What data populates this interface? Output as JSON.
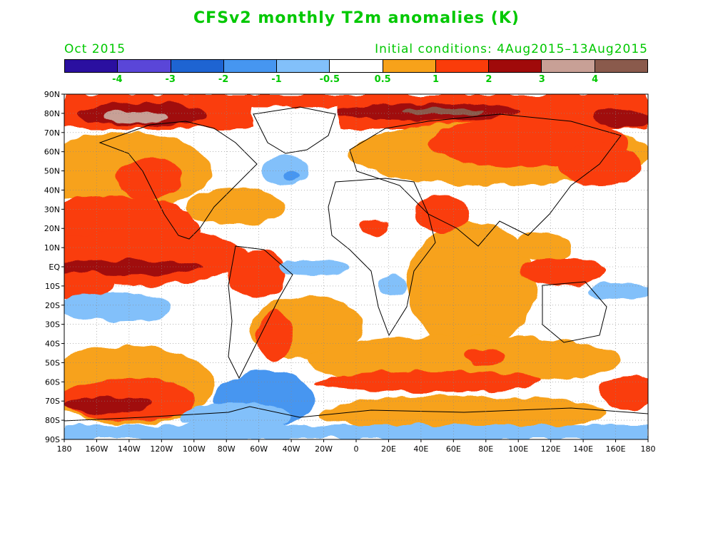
{
  "title": "CFSv2 monthly T2m anomalies (K)",
  "month": "Oct 2015",
  "initial_conditions": "Initial conditions: 4Aug2015–13Aug2015",
  "colorbar": {
    "colors": [
      "#2a0fa0",
      "#5a46d8",
      "#1e64d2",
      "#4696f0",
      "#82c0fa",
      "#ffffff",
      "#f7a21a",
      "#fa3c0a",
      "#a00a0a",
      "#c8a096",
      "#8a5a4c"
    ],
    "labels": [
      "-4",
      "-3",
      "-2",
      "-1",
      "-0.5",
      "0.5",
      "1",
      "2",
      "3",
      "4"
    ]
  },
  "lat_labels": [
    "90N",
    "80N",
    "70N",
    "60N",
    "50N",
    "40N",
    "30N",
    "20N",
    "10N",
    "EQ",
    "10S",
    "20S",
    "30S",
    "40S",
    "50S",
    "60S",
    "70S",
    "80S",
    "90S"
  ],
  "lon_labels": [
    "180",
    "160W",
    "140W",
    "120W",
    "100W",
    "80W",
    "60W",
    "40W",
    "20W",
    "0",
    "20E",
    "40E",
    "60E",
    "80E",
    "100E",
    "120E",
    "140E",
    "160E",
    "180"
  ]
}
